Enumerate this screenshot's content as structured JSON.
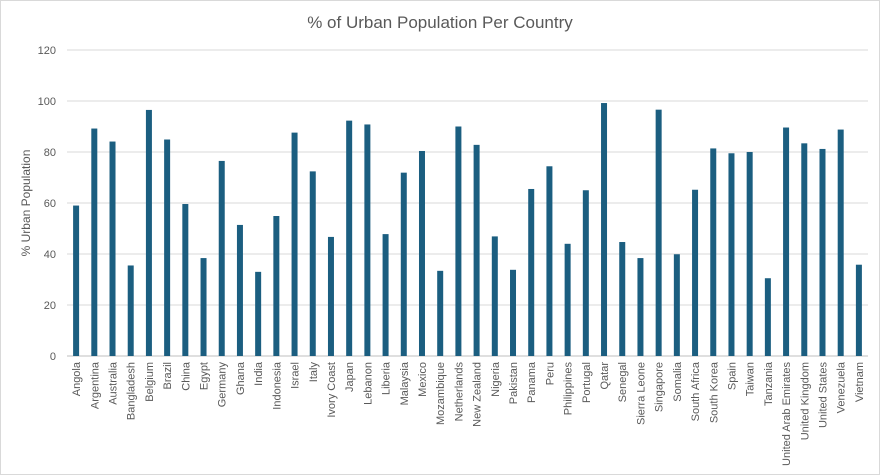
{
  "chart_data": {
    "type": "bar",
    "title": "% of Urban Population Per Country",
    "xlabel": "",
    "ylabel": "% Urban Population",
    "ylim": [
      0,
      120
    ],
    "yticks": [
      0,
      20,
      40,
      60,
      80,
      100,
      120
    ],
    "grid": true,
    "bar_color": "#1B5E80",
    "categories": [
      "Angola",
      "Argentina",
      "Australia",
      "Bangladesh",
      "Belgium",
      "Brazil",
      "China",
      "Egypt",
      "Germany",
      "Ghana",
      "India",
      "Indonesia",
      "Israel",
      "Italy",
      "Ivory Coast",
      "Japan",
      "Lebanon",
      "Liberia",
      "Malaysia",
      "Mexico",
      "Mozambique",
      "Netherlands",
      "New Zealand",
      "Nigeria",
      "Pakistan",
      "Panama",
      "Peru",
      "Philippines",
      "Portugal",
      "Qatar",
      "Senegal",
      "Sierra Leone",
      "Singapore",
      "Somalia",
      "South Africa",
      "South Korea",
      "Spain",
      "Taiwan",
      "Tanzania",
      "United Arab Emirates",
      "United Kingdom",
      "United States",
      "Venezuela",
      "Vietnam"
    ],
    "values": [
      59.0,
      89.2,
      84.1,
      35.5,
      96.5,
      84.9,
      59.6,
      38.4,
      76.5,
      51.4,
      33.0,
      54.9,
      87.6,
      72.4,
      46.7,
      92.3,
      90.8,
      47.8,
      71.9,
      80.4,
      33.4,
      90.0,
      82.8,
      46.9,
      33.8,
      65.5,
      74.4,
      44.0,
      65.0,
      99.2,
      44.7,
      38.4,
      96.6,
      39.9,
      65.2,
      81.4,
      79.5,
      80.0,
      30.5,
      89.6,
      83.4,
      81.2,
      88.8,
      35.8
    ]
  }
}
